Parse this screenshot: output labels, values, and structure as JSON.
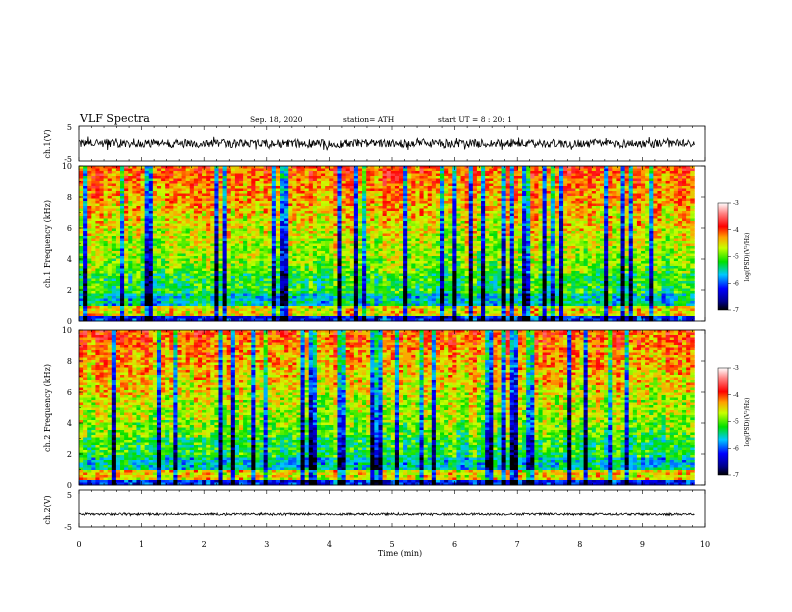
{
  "header": {
    "title": "VLF Spectra",
    "date": "Sep. 18, 2020",
    "station": "station= ATH",
    "start_ut": "start UT =  8 : 20: 1"
  },
  "colors": {
    "spectrogram_palette": [
      "#00008b",
      "#0000ff",
      "#00aaff",
      "#00e6e6",
      "#00e000",
      "#7fff00",
      "#ffff00",
      "#ffa500",
      "#ff2000",
      "#ff8080",
      "#ffffff"
    ],
    "waveform": "#000000"
  },
  "chart_data": [
    {
      "type": "line",
      "panel": "waveform-ch1",
      "ylabel": "ch.1(V)",
      "ylim": [
        -5,
        5
      ],
      "yticks": [
        "5",
        "-5"
      ],
      "xlim": [
        0,
        10
      ],
      "series": [
        {
          "description_values": "noisy waveform centred near 0 V, excursions mostly between -2 and +2 V",
          "center": 0,
          "amplitude_typical": 1.2,
          "amplitude_max": 2
        }
      ]
    },
    {
      "type": "heatmap",
      "panel": "spectrogram-ch1",
      "ylabel": "ch.1 Frequency (kHz)",
      "ylim": [
        0,
        10
      ],
      "yticks": [
        "0",
        "2",
        "4",
        "6",
        "8",
        "10"
      ],
      "xlim": [
        0,
        10
      ],
      "zlabel": "log(PSD)(V²/Hz)",
      "zlim": [
        -7,
        -3
      ],
      "zticks": [
        "-3",
        "-4",
        "-5",
        "-6",
        "-7"
      ]
    },
    {
      "type": "heatmap",
      "panel": "spectrogram-ch2",
      "ylabel": "ch.2 Frequency (kHz)",
      "ylim": [
        0,
        10
      ],
      "yticks": [
        "0",
        "2",
        "4",
        "6",
        "8",
        "10"
      ],
      "xlim": [
        0,
        10
      ],
      "zlabel": "log(PSD)(V²/Hz)",
      "zlim": [
        -7,
        -3
      ],
      "zticks": [
        "-3",
        "-4",
        "-5",
        "-6",
        "-7"
      ]
    },
    {
      "type": "line",
      "panel": "waveform-ch2",
      "ylabel": "ch.2(V)",
      "ylim": [
        -5,
        5
      ],
      "yticks": [
        "5",
        "-5"
      ],
      "xlim": [
        0,
        10
      ],
      "series": [
        {
          "center": -1.5,
          "amplitude_typical": 0.3,
          "amplitude_max": 0.4
        }
      ]
    }
  ],
  "xaxis": {
    "label": "Time  (min)",
    "ticks": [
      "0",
      "1",
      "2",
      "3",
      "4",
      "5",
      "6",
      "7",
      "8",
      "9",
      "10"
    ],
    "xlim": [
      0,
      10
    ],
    "data_end": 9.83
  }
}
